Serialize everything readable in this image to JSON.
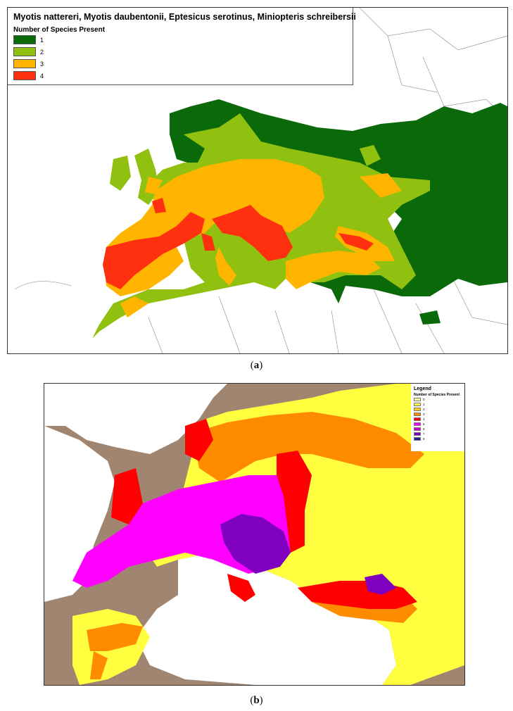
{
  "panel_a": {
    "title": "Myotis nattereri, Myotis daubentonii, Eptesicus serotinus, Miniopteris schreibersii",
    "legend_title": "Number of Species Present",
    "legend": [
      {
        "label": "1",
        "color": "#0a6a0a"
      },
      {
        "label": "2",
        "color": "#90c010"
      },
      {
        "label": "3",
        "color": "#ffb400"
      },
      {
        "label": "4",
        "color": "#ff3010"
      }
    ],
    "caption": "a"
  },
  "panel_b": {
    "legend_title": "Legend",
    "legend_subtitle": "Number of Species Present",
    "legend": [
      {
        "label": "0",
        "color": "#ffffa0"
      },
      {
        "label": "1",
        "color": "#ffff40"
      },
      {
        "label": "2",
        "color": "#ffd000"
      },
      {
        "label": "3",
        "color": "#ff8c00"
      },
      {
        "label": "4",
        "color": "#ff0000"
      },
      {
        "label": "5",
        "color": "#ff00ff"
      },
      {
        "label": "6",
        "color": "#cc00cc"
      },
      {
        "label": "7",
        "color": "#8000c0"
      },
      {
        "label": "8",
        "color": "#202090"
      }
    ],
    "caption": "b",
    "land_color": "#a08670"
  }
}
